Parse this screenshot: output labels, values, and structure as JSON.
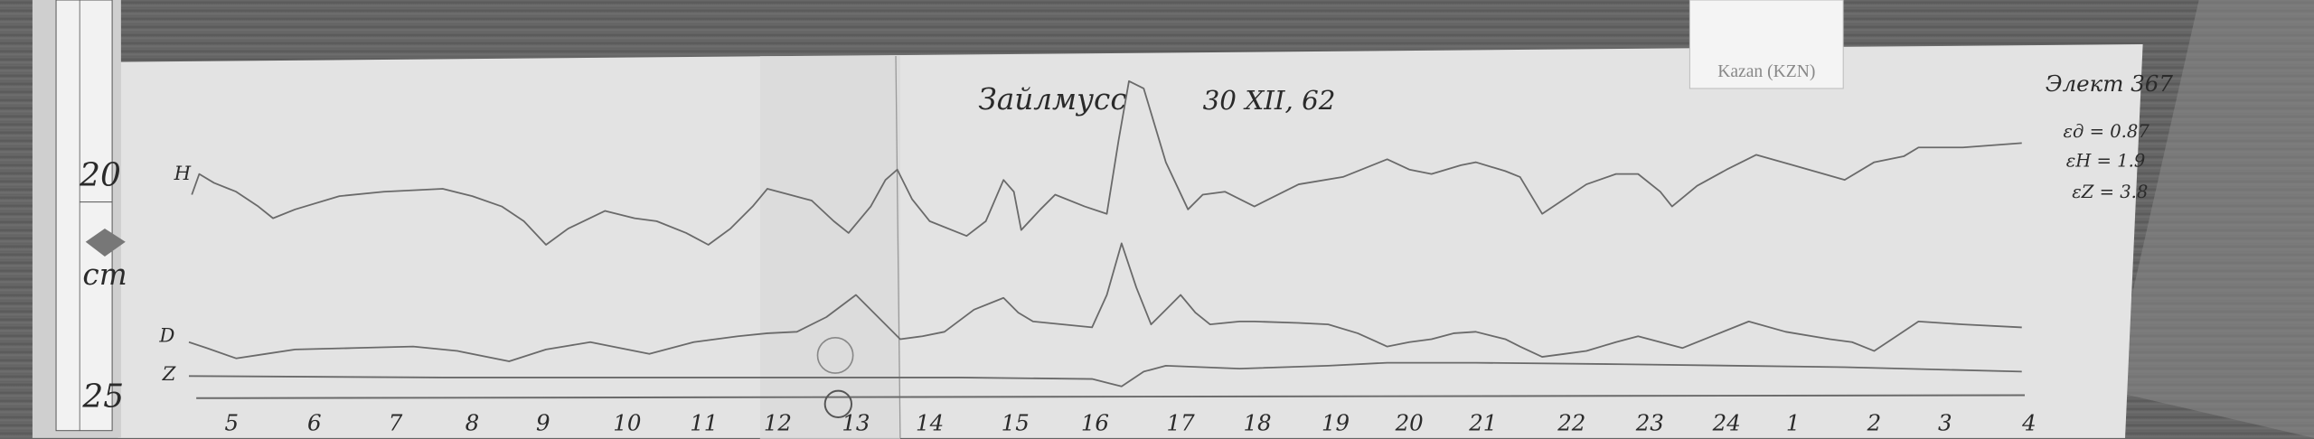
{
  "ruler": {
    "mark_top": "20",
    "mark_bottom": "25",
    "unit": "cm"
  },
  "station_card": {
    "label": "Kazan (KZN)"
  },
  "record": {
    "title": "Зайлмусс",
    "date": "30 XII, 62",
    "number": "Элект 367",
    "scale_values": [
      "εд = 0.87",
      "εH = 1.9",
      "εZ = 3.8"
    ],
    "trace_labels": {
      "h": "H",
      "d": "D",
      "z": "Z"
    },
    "hour_labels": [
      "5",
      "6",
      "7",
      "8",
      "9",
      "10",
      "11",
      "12",
      "13",
      "14",
      "15",
      "16",
      "17",
      "18",
      "19",
      "20",
      "21",
      "22",
      "23",
      "24",
      "1",
      "2",
      "3",
      "4"
    ]
  },
  "colors": {
    "paper": "#e4e4e4",
    "ink": "#2a2a2a",
    "trace": "#6a6a6a",
    "table": "#666666"
  }
}
